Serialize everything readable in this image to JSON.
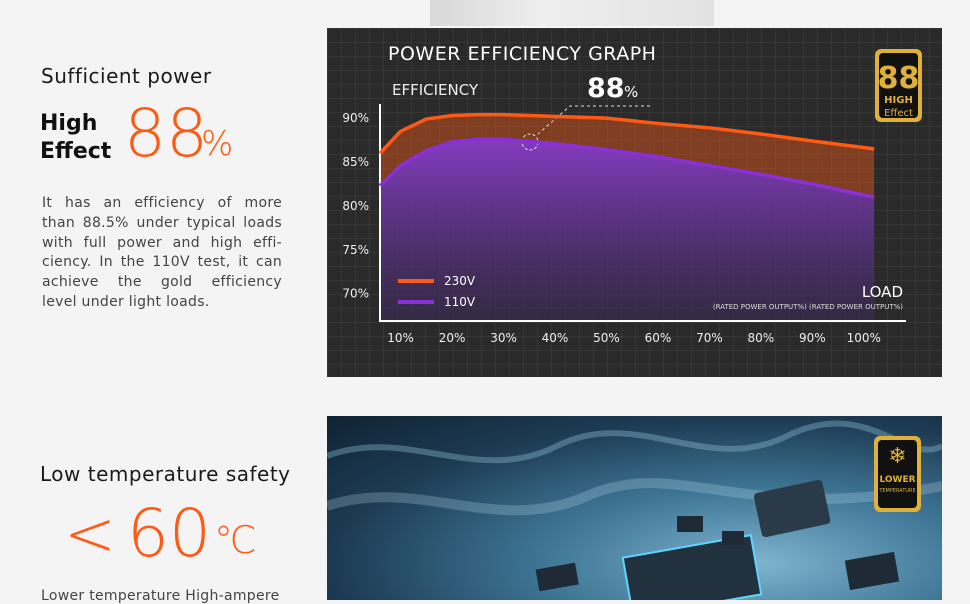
{
  "section1": {
    "heading": "Sufficient power",
    "label_line1": "High",
    "label_line2": "Effect",
    "big_number": "88",
    "big_unit": "%",
    "paragraph_lines": [
      "It has an efficiency of more",
      "than 88.5% under typical loads",
      "with full power and high effi-",
      "ciency. In the 110V test, it can",
      "achieve the gold efficiency",
      "level under light loads."
    ]
  },
  "chart_data": {
    "type": "line",
    "title": "POWER EFFICIENCY GRAPH",
    "y_label": "EFFICIENCY",
    "x_label": "LOAD",
    "x_sublabel": "(RATED POWER OUTPUT%) (RATED POWER OUTPUT%)",
    "annotation": "88",
    "annotation_unit": "%",
    "badge": {
      "number": "88",
      "line1": "HIGH",
      "line2": "Effect"
    },
    "x": [
      6,
      10,
      15,
      20,
      25,
      30,
      40,
      50,
      60,
      70,
      80,
      90,
      102
    ],
    "series": [
      {
        "name": "230V",
        "color": "#ff5a14",
        "values": [
          86.0,
          88.5,
          89.9,
          90.3,
          90.4,
          90.4,
          90.2,
          90.0,
          89.4,
          88.9,
          88.2,
          87.4,
          86.5
        ]
      },
      {
        "name": "110V",
        "color": "#8b2fd6",
        "values": [
          82.3,
          84.6,
          86.3,
          87.3,
          87.6,
          87.6,
          87.1,
          86.4,
          85.6,
          84.6,
          83.6,
          82.5,
          81.0
        ]
      }
    ],
    "xlim": [
      6,
      108
    ],
    "ylim": [
      67,
      91.5
    ],
    "xticks": [
      {
        "value": 10,
        "label": "10%"
      },
      {
        "value": 20,
        "label": "20%"
      },
      {
        "value": 30,
        "label": "30%"
      },
      {
        "value": 40,
        "label": "40%"
      },
      {
        "value": 50,
        "label": "50%"
      },
      {
        "value": 60,
        "label": "60%"
      },
      {
        "value": 70,
        "label": "70%"
      },
      {
        "value": 80,
        "label": "80%"
      },
      {
        "value": 90,
        "label": "90%"
      },
      {
        "value": 100,
        "label": "100%"
      }
    ],
    "yticks": [
      {
        "value": 70,
        "label": "70%"
      },
      {
        "value": 75,
        "label": "75%"
      },
      {
        "value": 80,
        "label": "80%"
      },
      {
        "value": 85,
        "label": "85%"
      },
      {
        "value": 90,
        "label": "90%"
      }
    ],
    "legend": "bottom-left"
  },
  "section2": {
    "heading": "Low temperature safety",
    "symbol": "<",
    "big_number": "60",
    "big_unit": "℃",
    "paragraph_start": "Lower temperature High-ampere",
    "badge": {
      "line1": "LOWER",
      "line2": "TEMPERATURE"
    }
  }
}
